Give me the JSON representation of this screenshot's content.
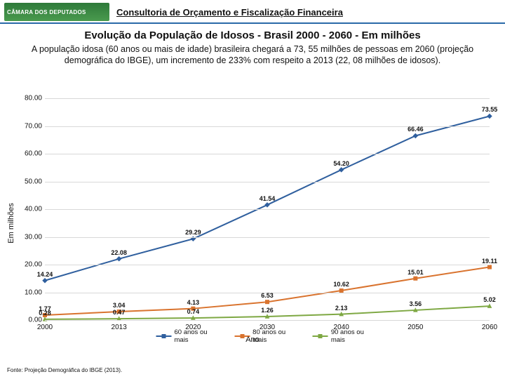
{
  "header": {
    "logo_text": "CÂMARA DOS DEPUTADOS",
    "subtitle": "Consultoria de Orçamento e Fiscalização Financeira"
  },
  "title": "Evolução da População de Idosos - Brasil 2000 - 2060 - Em milhões",
  "description": "A população idosa (60 anos ou mais de idade) brasileira chegará a 73, 55 milhões de pessoas em 2060 (projeção demográfica do IBGE), um incremento de 233% com respeito a 2013 (22, 08 milhões de idosos).",
  "chart": {
    "type": "line",
    "ylabel": "Em milhões",
    "xlabel": "Ano",
    "ylim": [
      0,
      80
    ],
    "ytick_step": 10,
    "categories": [
      "2000",
      "2013",
      "2020",
      "2030",
      "2040",
      "2050",
      "2060"
    ],
    "grid_color": "#d8d8d8",
    "background_color": "#ffffff",
    "series": [
      {
        "name": "60 anos ou mais",
        "color": "#2f5f9e",
        "marker": "diamond",
        "values": [
          14.24,
          22.08,
          29.29,
          41.54,
          54.2,
          66.46,
          73.55
        ]
      },
      {
        "name": "80 anos ou mais",
        "color": "#d9732e",
        "marker": "square",
        "values": [
          1.77,
          3.04,
          4.13,
          6.53,
          10.62,
          15.01,
          19.11
        ]
      },
      {
        "name": "90 anos ou mais",
        "color": "#7ea843",
        "marker": "triangle",
        "values": [
          0.28,
          0.47,
          0.74,
          1.26,
          2.13,
          3.56,
          5.02
        ]
      }
    ],
    "legend_position": "bottom",
    "line_width": 2,
    "marker_size": 6,
    "label_fontsize": 9
  },
  "footer": "Fonte: Projeção Demográfica do IBGE (2013)."
}
